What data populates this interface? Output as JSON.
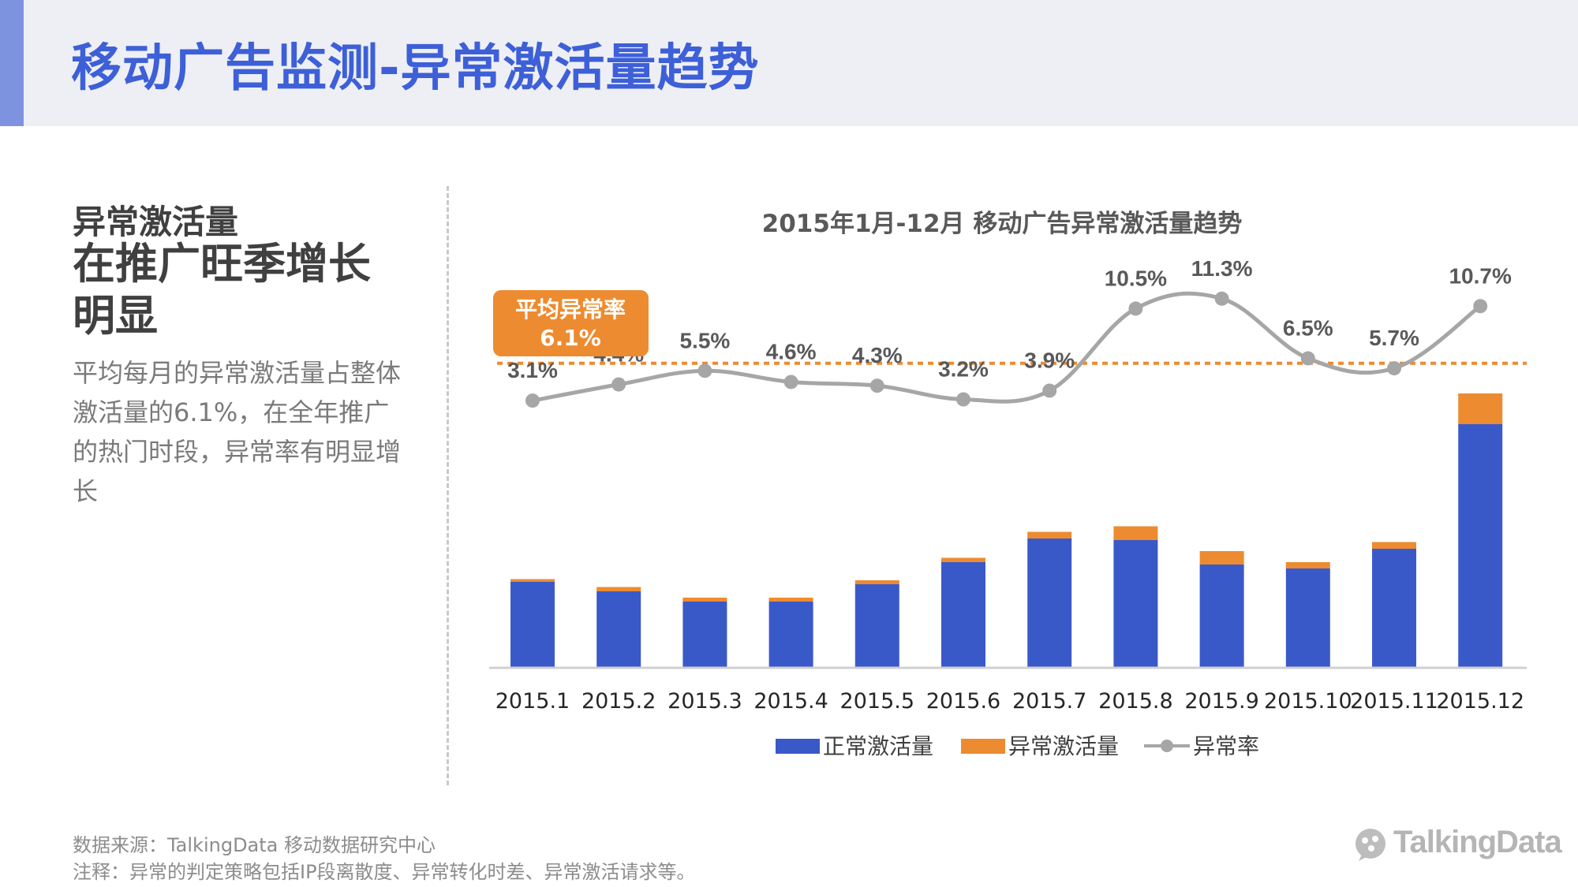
{
  "header": {
    "title": "移动广告监测-异常激活量趋势"
  },
  "sidebar": {
    "heading_line1": "异常激活量",
    "heading_line2": "在推广旺季增长明显",
    "body": "平均每月的异常激活量占整体激活量的6.1%，在全年推广的热门时段，异常率有明显增长"
  },
  "footer": {
    "source": "数据来源：TalkingData 移动数据研究中心",
    "note": "注释：异常的判定策略包括IP段离散度、异常转化时差、异常激活请求等。",
    "brand": "TalkingData"
  },
  "colors": {
    "normal": "#3a59c9",
    "abnormal": "#ed8b30",
    "rate_line": "#a6a6a6",
    "title_blue": "#3d5fd8"
  },
  "chart_data": {
    "type": "bar",
    "title": "2015年1月-12月  移动广告异常激活量趋势",
    "categories": [
      "2015.1",
      "2015.2",
      "2015.3",
      "2015.4",
      "2015.5",
      "2015.6",
      "2015.7",
      "2015.8",
      "2015.9",
      "2015.10",
      "2015.11",
      "2015.12"
    ],
    "series": [
      {
        "name": "正常激活量",
        "type": "bar",
        "stacked": true,
        "values": [
          109,
          97,
          84,
          84,
          106,
          134,
          164,
          162,
          131,
          126,
          151,
          309
        ]
      },
      {
        "name": "异常激活量",
        "type": "bar",
        "stacked": true,
        "values": [
          3.5,
          5.5,
          5,
          5,
          5,
          5.5,
          8.5,
          17.5,
          17,
          8,
          8.5,
          39
        ]
      },
      {
        "name": "异常率",
        "type": "line",
        "values": [
          3.1,
          4.4,
          5.5,
          4.6,
          4.3,
          3.2,
          3.9,
          10.5,
          11.3,
          6.5,
          5.7,
          10.7
        ],
        "labels": [
          "3.1%",
          "4.4%",
          "5.5%",
          "4.6%",
          "4.3%",
          "3.2%",
          "3.9%",
          "10.5%",
          "11.3%",
          "6.5%",
          "5.7%",
          "10.7%"
        ]
      }
    ],
    "average_rate": {
      "label": "平均异常率",
      "value": 6.1,
      "value_label": "6.1%"
    },
    "legend": [
      "正常激活量",
      "异常激活量",
      "异常率"
    ],
    "legend_position": "bottom",
    "grid": false
  }
}
